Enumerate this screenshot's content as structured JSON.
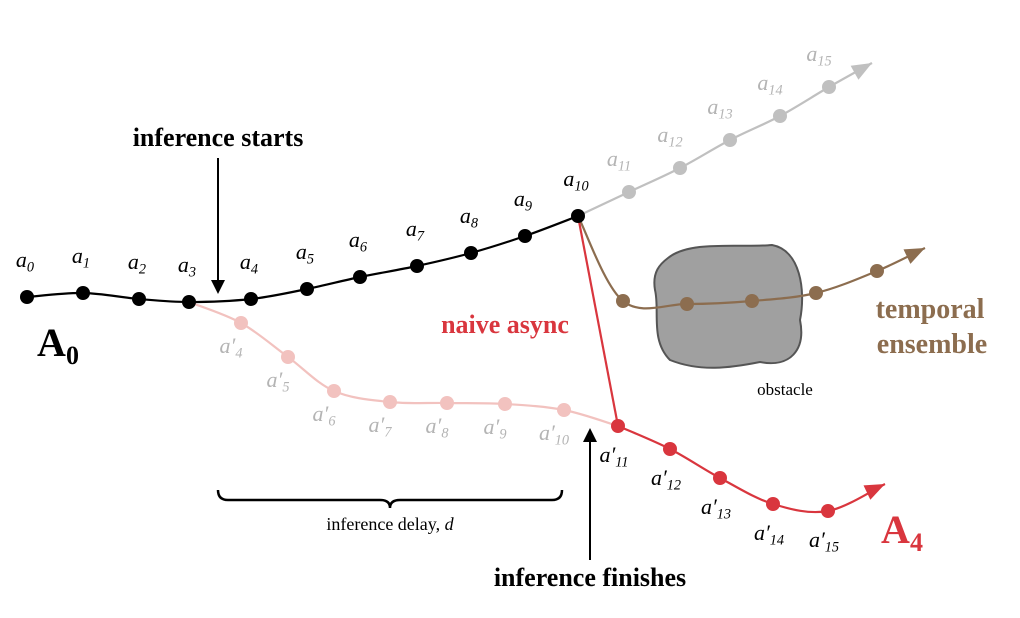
{
  "texts": {
    "start": "inference starts",
    "finish": "inference finishes",
    "naive": "naive async",
    "temporal": [
      "temporal",
      "ensemble"
    ],
    "obstacle": "obstacle",
    "delay": {
      "text": "inference delay, ",
      "var": "d"
    },
    "A0": {
      "base": "A",
      "sub": "0"
    },
    "A4": {
      "base": "A",
      "sub": "4"
    }
  },
  "chunk": [
    {
      "base": "a",
      "sub": "0"
    },
    {
      "base": "a",
      "sub": "1"
    },
    {
      "base": "a",
      "sub": "2"
    },
    {
      "base": "a",
      "sub": "3"
    },
    {
      "base": "a",
      "sub": "4"
    },
    {
      "base": "a",
      "sub": "5"
    },
    {
      "base": "a",
      "sub": "6"
    },
    {
      "base": "a",
      "sub": "7"
    },
    {
      "base": "a",
      "sub": "8"
    },
    {
      "base": "a",
      "sub": "9"
    },
    {
      "base": "a",
      "sub": "10"
    }
  ],
  "grey": [
    {
      "base": "a",
      "sub": "11"
    },
    {
      "base": "a",
      "sub": "12"
    },
    {
      "base": "a",
      "sub": "13"
    },
    {
      "base": "a",
      "sub": "14"
    },
    {
      "base": "a",
      "sub": "15"
    }
  ],
  "pink": [
    {
      "base": "a′",
      "sub": "4"
    },
    {
      "base": "a′",
      "sub": "5"
    },
    {
      "base": "a′",
      "sub": "6"
    },
    {
      "base": "a′",
      "sub": "7"
    },
    {
      "base": "a′",
      "sub": "8"
    },
    {
      "base": "a′",
      "sub": "9"
    },
    {
      "base": "a′",
      "sub": "10"
    }
  ],
  "red": [
    {
      "base": "a′",
      "sub": "11"
    },
    {
      "base": "a′",
      "sub": "12"
    },
    {
      "base": "a′",
      "sub": "13"
    },
    {
      "base": "a′",
      "sub": "14"
    },
    {
      "base": "a′",
      "sub": "15"
    }
  ]
}
